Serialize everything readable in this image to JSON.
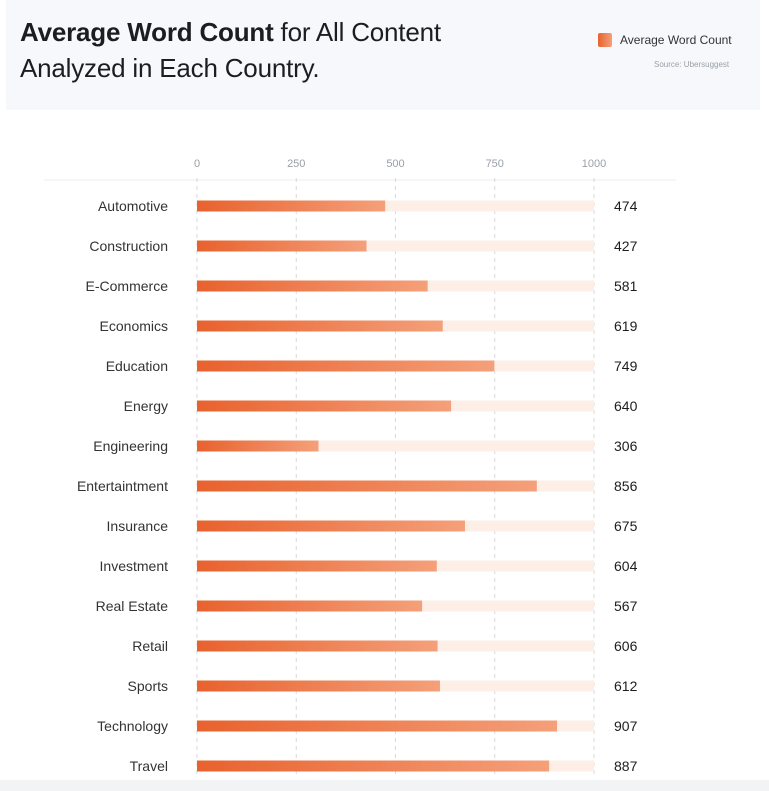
{
  "header": {
    "title_bold": "Average Word Count",
    "title_rest": " for All Content Analyzed in Each Country.",
    "legend_label": "Average Word Count",
    "source": "Source: Ubersuggest"
  },
  "chart_data": {
    "type": "bar",
    "orientation": "horizontal",
    "title": "Average Word Count for All Content Analyzed in Each Country.",
    "categories": [
      "Automotive",
      "Construction",
      "E-Commerce",
      "Economics",
      "Education",
      "Energy",
      "Engineering",
      "Entertaintment",
      "Insurance",
      "Investment",
      "Real Estate",
      "Retail",
      "Sports",
      "Technology",
      "Travel"
    ],
    "series": [
      {
        "name": "Average Word Count",
        "values": [
          474,
          427,
          581,
          619,
          749,
          640,
          306,
          856,
          675,
          604,
          567,
          606,
          612,
          907,
          887
        ]
      }
    ],
    "xlim": [
      0,
      1000
    ],
    "xticks": [
      0,
      250,
      500,
      750,
      1000
    ],
    "grid": true,
    "legend_position": "top-right",
    "colors": {
      "bar_start": "#e8622e",
      "bar_end": "#f4a07a",
      "track": "#fdeee6",
      "grid": "#d9d9d9"
    }
  }
}
